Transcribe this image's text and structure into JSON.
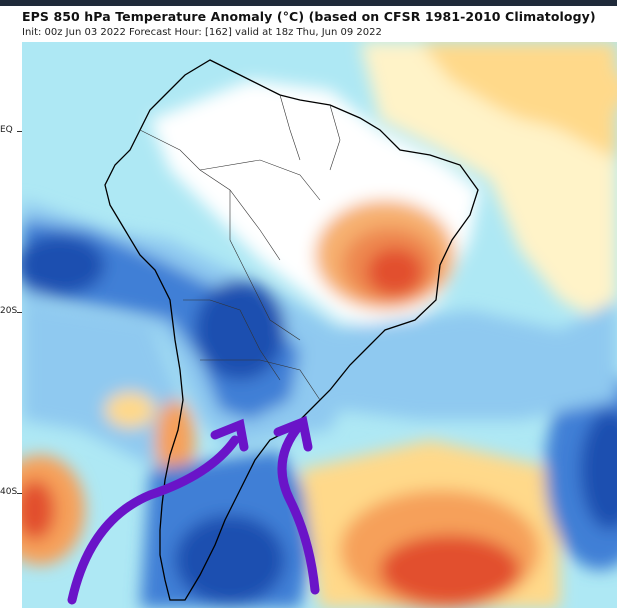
{
  "header": {
    "title": "EPS 850 hPa Temperature Anomaly (°C) (based on CFSR 1981-2010 Climatology)",
    "subtitle": "Init: 00z Jun 03 2022   Forecast Hour: [162]   valid at 18z Thu, Jun 09 2022"
  },
  "latitude_labels": {
    "eq": "EQ",
    "s20": "20S",
    "s40": "40S"
  },
  "colors": {
    "deep_blue": "#1f4fb0",
    "blue": "#3f7fd6",
    "light_blue": "#8fc9f0",
    "cyan": "#aee8f4",
    "cream": "#fff3c8",
    "yellow": "#ffd98a",
    "orange": "#f6a05a",
    "red": "#e2502e",
    "arrow_purple": "#6a14c8",
    "coast": "#000000"
  },
  "icons": [
    "cold-air-arrow-west-icon",
    "cold-air-arrow-east-icon"
  ]
}
